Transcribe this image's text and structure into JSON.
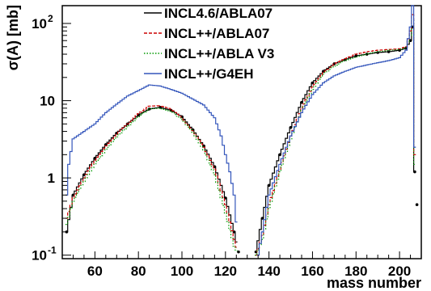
{
  "chart_data": {
    "type": "line",
    "title": "",
    "xlabel": "mass number",
    "ylabel": "σ(A) [mb]",
    "xlim": [
      45,
      210
    ],
    "ylim": [
      0.09,
      170
    ],
    "yscale": "log",
    "x_ticks": [
      {
        "value": 60,
        "label": "60"
      },
      {
        "value": 80,
        "label": "80"
      },
      {
        "value": 100,
        "label": "100"
      },
      {
        "value": 120,
        "label": "120"
      },
      {
        "value": 140,
        "label": "140"
      },
      {
        "value": 160,
        "label": "160"
      },
      {
        "value": 180,
        "label": "180"
      },
      {
        "value": 200,
        "label": "200"
      }
    ],
    "y_ticks": [
      {
        "value": 0.1,
        "base": "10",
        "exp": "-1"
      },
      {
        "value": 1,
        "base": "1",
        "exp": ""
      },
      {
        "value": 10,
        "base": "10",
        "exp": ""
      },
      {
        "value": 100,
        "base": "10",
        "exp": "2"
      }
    ],
    "legend_position": "top-center",
    "grid": false,
    "series": [
      {
        "name": "INCL4.6/ABLA07",
        "color": "#000000",
        "style": "solid",
        "markers": true,
        "fragment": {
          "x": [
            47,
            50,
            55,
            60,
            65,
            70,
            75,
            80,
            85,
            90,
            95,
            100,
            105,
            110,
            115,
            120,
            124,
            126
          ],
          "y": [
            0.2,
            0.6,
            1.1,
            1.8,
            2.7,
            3.8,
            5.0,
            6.5,
            7.8,
            8.2,
            7.5,
            6.2,
            4.2,
            2.6,
            1.4,
            0.55,
            0.2,
            0.11
          ]
        },
        "heavy": {
          "x": [
            134,
            137,
            140,
            145,
            150,
            155,
            160,
            165,
            170,
            175,
            180,
            185,
            190,
            195,
            200,
            203,
            205,
            206,
            207,
            208
          ],
          "y": [
            0.11,
            0.3,
            0.8,
            2.0,
            4.5,
            9.5,
            17,
            24,
            30,
            34,
            38,
            40,
            42,
            43,
            45,
            48,
            60,
            90,
            1.2,
            0.45
          ]
        }
      },
      {
        "name": "INCL++/ABLA07",
        "color": "#cc0000",
        "style": "dashed",
        "markers": false,
        "fragment": {
          "x": [
            47,
            50,
            55,
            60,
            65,
            70,
            75,
            80,
            85,
            90,
            95,
            100,
            105,
            110,
            115,
            120,
            124,
            126
          ],
          "y": [
            0.3,
            0.55,
            1.0,
            1.7,
            2.6,
            3.7,
            5.0,
            6.8,
            8.5,
            8.6,
            7.8,
            6.0,
            4.1,
            2.5,
            1.3,
            0.45,
            0.16,
            0.1
          ]
        },
        "heavy": {
          "x": [
            134,
            137,
            140,
            145,
            150,
            155,
            160,
            165,
            170,
            175,
            180,
            185,
            190,
            195,
            200,
            203,
            205,
            206,
            207,
            208
          ],
          "y": [
            0.1,
            0.18,
            0.45,
            1.3,
            3.5,
            8.0,
            15,
            23,
            30,
            35,
            40,
            43,
            45,
            46,
            47,
            50,
            80,
            130,
            2.0,
            0.6
          ]
        }
      },
      {
        "name": "INCL++/ABLA V3",
        "color": "#009900",
        "style": "dotted",
        "markers": false,
        "fragment": {
          "x": [
            47,
            50,
            55,
            60,
            65,
            70,
            75,
            80,
            85,
            90,
            95,
            100,
            105,
            110,
            115,
            120,
            124,
            126
          ],
          "y": [
            0.25,
            0.5,
            0.9,
            1.5,
            2.3,
            3.4,
            4.6,
            6.2,
            7.8,
            8.0,
            7.3,
            5.7,
            3.9,
            2.3,
            1.1,
            0.35,
            0.13,
            0.1
          ]
        },
        "heavy": {
          "x": [
            134,
            137,
            140,
            145,
            150,
            155,
            160,
            165,
            170,
            175,
            180,
            185,
            190,
            195,
            200,
            203,
            205,
            206,
            207,
            208
          ],
          "y": [
            0.1,
            0.16,
            0.4,
            1.2,
            3.2,
            7.5,
            14,
            22,
            28,
            33,
            37,
            40,
            43,
            45,
            46,
            49,
            70,
            110,
            1.5,
            0.5
          ]
        }
      },
      {
        "name": "INCL++/G4EH",
        "color": "#3355bb",
        "style": "solid",
        "markers": false,
        "fragment": {
          "x": [
            47,
            48,
            50,
            55,
            60,
            65,
            70,
            75,
            80,
            85,
            90,
            95,
            100,
            105,
            110,
            115,
            118,
            120,
            122,
            124,
            126
          ],
          "y": [
            0.6,
            1.5,
            3.2,
            4.0,
            5.0,
            7.0,
            9.0,
            11.5,
            13.5,
            16,
            15.5,
            14,
            12.5,
            10.5,
            8.8,
            6.0,
            3.5,
            2.0,
            1.2,
            0.6,
            0.12
          ]
        },
        "heavy": {
          "x": [
            135,
            137,
            140,
            145,
            150,
            155,
            160,
            165,
            170,
            175,
            180,
            185,
            190,
            195,
            200,
            203,
            205,
            206,
            207,
            208
          ],
          "y": [
            0.1,
            0.2,
            0.6,
            1.5,
            3.5,
            7.0,
            12,
            17,
            21,
            24,
            27,
            29,
            31,
            33,
            36,
            45,
            90,
            200,
            2.5,
            0.8
          ]
        }
      }
    ]
  }
}
